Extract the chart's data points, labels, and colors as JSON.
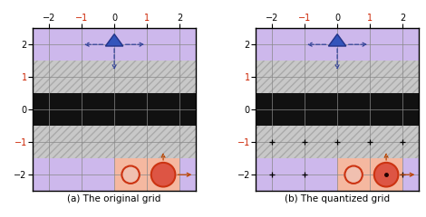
{
  "title_a": "(a) The original grid",
  "title_b": "(b) The quantized grid",
  "color_purple": "#cdb8ec",
  "color_hatch_bg": "#c8c8c8",
  "color_black_band": "#111111",
  "color_red_highlight": "#f5b8a0",
  "color_red_circle_edge": "#cc3311",
  "color_red_circle_fill": "#dd5544",
  "color_red_circle_light": "#f0c0b0",
  "color_blue_tri": "#3355bb",
  "color_blue_tri_edge": "#223388",
  "color_blue_arrow": "#334499",
  "color_orange_arrow": "#bb4400",
  "figsize": [
    4.7,
    2.4
  ],
  "dpi": 100
}
